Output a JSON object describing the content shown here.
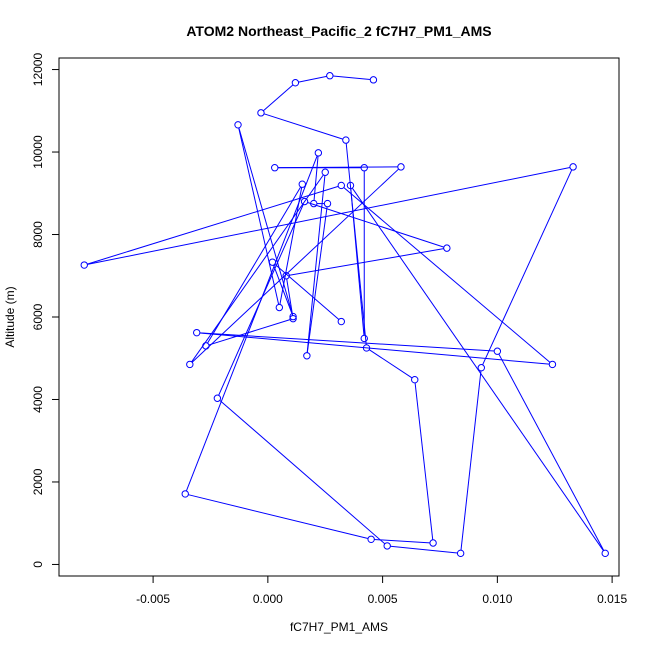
{
  "chart_data": {
    "type": "line",
    "title": "ATOM2 Northeast_Pacific_2 fC7H7_PM1_AMS",
    "xlabel": "fC7H7_PM1_AMS",
    "ylabel": "Altitude (m)",
    "xlim": [
      -0.0091,
      0.0153
    ],
    "ylim": [
      -280,
      12280
    ],
    "x_ticks": [
      -0.005,
      0.0,
      0.005,
      0.01,
      0.015
    ],
    "x_tick_labels": [
      "-0.005",
      "0.000",
      "0.005",
      "0.010",
      "0.015"
    ],
    "y_ticks": [
      0,
      2000,
      4000,
      6000,
      8000,
      10000,
      12000
    ],
    "y_tick_labels": [
      "0",
      "2000",
      "4000",
      "6000",
      "8000",
      "10000",
      "12000"
    ],
    "grid": false,
    "series": [
      {
        "color": "#0000ff",
        "marker": "open-circle",
        "points": [
          [
            0.0046,
            11750
          ],
          [
            0.0027,
            11850
          ],
          [
            0.0012,
            11680
          ],
          [
            -0.0003,
            10950
          ],
          [
            0.0034,
            10290
          ],
          [
            0.0043,
            5250
          ],
          [
            0.0064,
            4480
          ],
          [
            0.0072,
            520
          ],
          [
            0.0045,
            610
          ],
          [
            -0.0036,
            1710
          ],
          [
            0.0022,
            9980
          ],
          [
            0.002,
            8750
          ],
          [
            0.0026,
            8750
          ],
          [
            0.0017,
            5060
          ],
          [
            0.0025,
            9510
          ],
          [
            -0.0034,
            4850
          ],
          [
            0.0058,
            9640
          ],
          [
            0.0003,
            9620
          ],
          [
            0.0042,
            9620
          ],
          [
            0.0042,
            5480
          ],
          [
            0.0036,
            9190
          ],
          [
            0.0147,
            270
          ],
          [
            0.01,
            5170
          ],
          [
            -0.0031,
            5620
          ],
          [
            0.0124,
            4850
          ],
          [
            0.0032,
            9190
          ],
          [
            -0.008,
            7260
          ],
          [
            0.0133,
            9640
          ],
          [
            0.0093,
            4770
          ],
          [
            0.0084,
            270
          ],
          [
            0.0052,
            450
          ],
          [
            -0.0022,
            4030
          ],
          [
            0.0016,
            8800
          ],
          [
            0.0078,
            7670
          ],
          [
            0.0008,
            7000
          ],
          [
            0.0011,
            5960
          ],
          [
            -0.0027,
            5300
          ],
          [
            0.0015,
            9220
          ],
          [
            0.0005,
            6230
          ],
          [
            -0.0013,
            10660
          ],
          [
            0.0011,
            6010
          ],
          [
            0.0002,
            7330
          ],
          [
            0.0032,
            5890
          ]
        ]
      }
    ]
  }
}
